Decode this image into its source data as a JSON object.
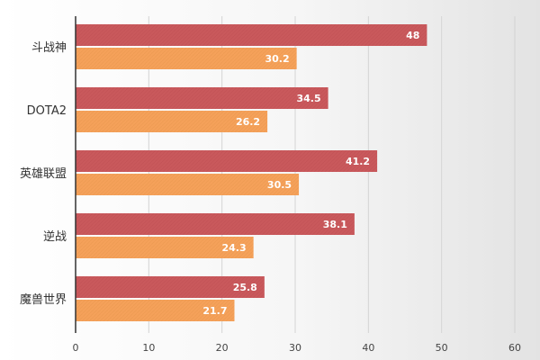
{
  "chart_data": {
    "type": "bar",
    "orientation": "horizontal",
    "categories": [
      "斗战神",
      "DOTA2",
      "英雄联盟",
      "逆战",
      "魔兽世界"
    ],
    "series": [
      {
        "values": [
          48,
          34.5,
          41.2,
          38.1,
          25.8
        ],
        "color": "#c9595c"
      },
      {
        "values": [
          30.2,
          26.2,
          30.5,
          24.3,
          21.7
        ],
        "color": "#f5a15a"
      }
    ],
    "xlim": [
      0,
      60
    ],
    "xticks": [
      0,
      10,
      20,
      30,
      40,
      50,
      60
    ],
    "grid": true,
    "data_labels": true,
    "title": "",
    "xlabel": "",
    "ylabel": ""
  }
}
